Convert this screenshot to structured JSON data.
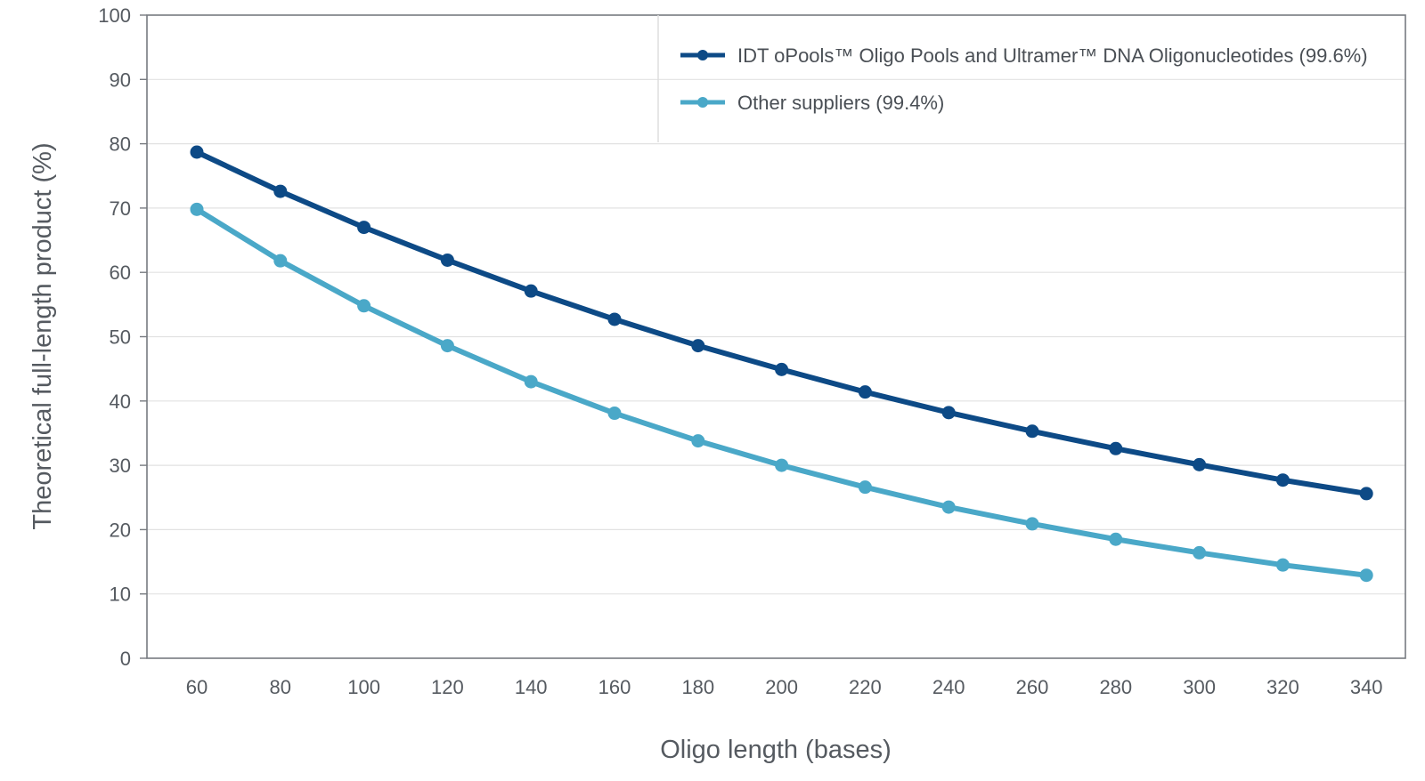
{
  "chart_data": {
    "type": "line",
    "title": "",
    "xlabel": "Oligo length (bases)",
    "ylabel": "Theoretical full-length product (%)",
    "categories": [
      60,
      80,
      100,
      120,
      140,
      160,
      180,
      200,
      220,
      240,
      260,
      280,
      300,
      320,
      340
    ],
    "ylim": [
      0,
      100
    ],
    "yticks": [
      0,
      10,
      20,
      30,
      40,
      50,
      60,
      70,
      80,
      90,
      100
    ],
    "grid": true,
    "legend_position": "top-right",
    "series": [
      {
        "name": "IDT oPools™ Oligo Pools and Ultramer™ DNA Oligonucleotides (99.6%)",
        "color": "#0d4a86",
        "values": [
          78.7,
          72.6,
          67.0,
          61.9,
          57.1,
          52.7,
          48.6,
          44.9,
          41.4,
          38.2,
          35.3,
          32.6,
          30.1,
          27.7,
          25.6
        ]
      },
      {
        "name": "Other suppliers (99.4%)",
        "color": "#4aa8c8",
        "values": [
          69.8,
          61.8,
          54.8,
          48.6,
          43.0,
          38.1,
          33.8,
          30.0,
          26.6,
          23.5,
          20.9,
          18.5,
          16.4,
          14.5,
          12.9
        ]
      }
    ]
  }
}
